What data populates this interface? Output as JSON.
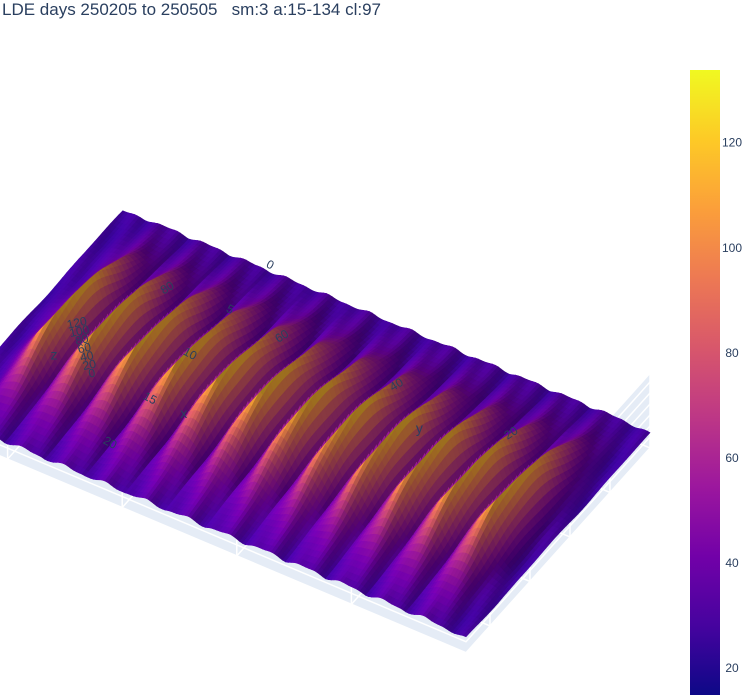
{
  "chart_data": {
    "type": "surface3d",
    "title": "LDE days 250205 to 250505   sm:3 a:15-134 cl:97",
    "x_axis": {
      "label": "x",
      "ticks": [
        0,
        5,
        10,
        15,
        20
      ],
      "range": [
        0,
        23
      ]
    },
    "y_axis": {
      "label": "y",
      "ticks": [
        20,
        40,
        60,
        80
      ],
      "range": [
        0,
        92
      ]
    },
    "z_axis": {
      "label": "z",
      "ticks": [
        0,
        20,
        40,
        60,
        80,
        100,
        120
      ],
      "range": [
        0,
        134
      ]
    },
    "colorscale": "Plasma",
    "colorbar": {
      "ticks": [
        20,
        40,
        60,
        80,
        100,
        120
      ],
      "range": [
        15,
        134
      ]
    },
    "value_range": [
      15,
      134
    ],
    "ridges_y": [
      7,
      14,
      21,
      28,
      35,
      42,
      49,
      56,
      63,
      70,
      77,
      84
    ],
    "ridge_peak_x": 12,
    "ridge_peak_value": 130,
    "baseline_value": 35,
    "grid": true
  },
  "colors": {
    "plasma": [
      "#0d0887",
      "#46039f",
      "#7201a8",
      "#9c179e",
      "#bd3786",
      "#d8576b",
      "#ed7953",
      "#fb9f3a",
      "#fdca26",
      "#f0f921"
    ],
    "grid_plane": "#e5ecf6",
    "grid_line": "#ffffff",
    "text": "#2a3f5f"
  }
}
